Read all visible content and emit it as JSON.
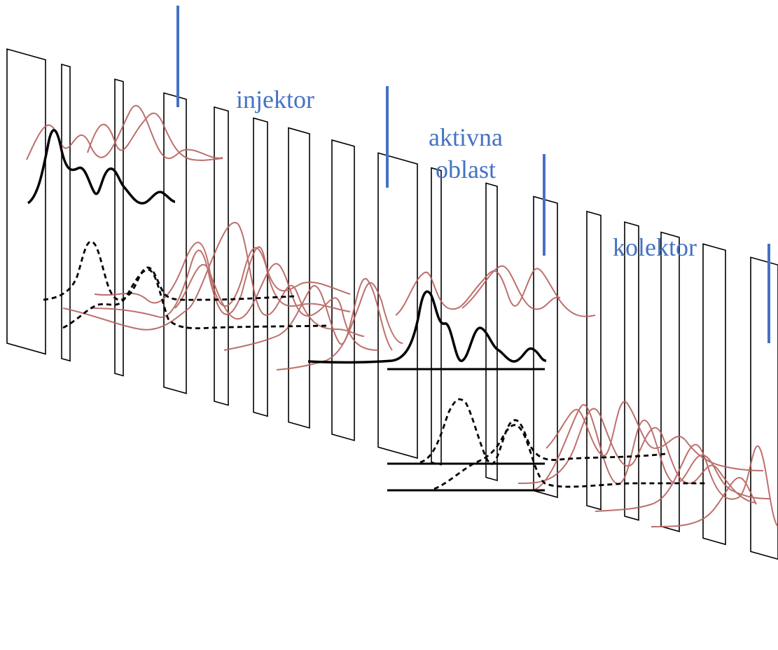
{
  "labels": {
    "injector": "injektor",
    "active_line1": "aktivna",
    "active_line2": "oblast",
    "collector": "kolektor"
  },
  "colors": {
    "label": "#4472c4",
    "divider": "#4472c4",
    "barrier": "#000000",
    "wavefunction": "#b5615d",
    "highlight": "#000000"
  }
}
